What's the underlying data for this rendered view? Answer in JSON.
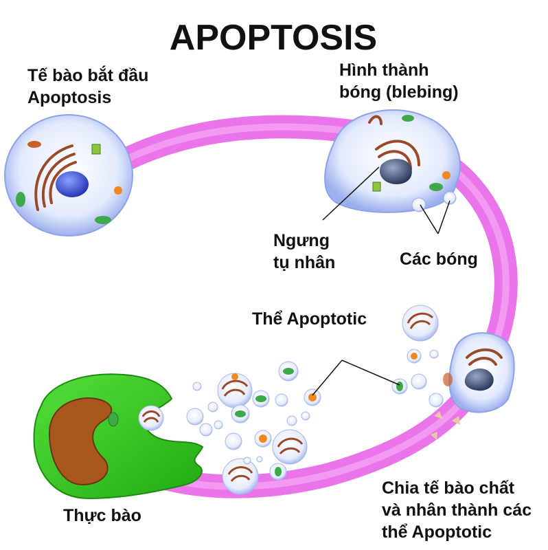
{
  "title": "APOPTOSIS",
  "labels": {
    "cell_start": [
      "Tế bào bắt đầu",
      "Apoptosis"
    ],
    "blebbing": [
      "Hình thành",
      "bóng (blebing)"
    ],
    "condensation": [
      "Ngưng",
      "tụ nhân"
    ],
    "blebs": "Các bóng",
    "apoptotic_bodies": "Thể Apoptotic",
    "fragmentation": [
      "Chia tế bào chất",
      "và nhân thành các",
      "thể Apoptotic"
    ],
    "phagocyte": "Thực bào"
  },
  "colors": {
    "arrow": "#e86be8",
    "cell_fill": "#dfe8fb",
    "nucleus": "#3f57d8",
    "condensed_nucleus": "#3a4d74",
    "golgi": "#9a4a2a",
    "organelle_orange": "#f08a20",
    "mitochondria": "#3fa84a",
    "phagocyte": "#33cc22",
    "phagocyte_nucleus": "#a8561c"
  }
}
